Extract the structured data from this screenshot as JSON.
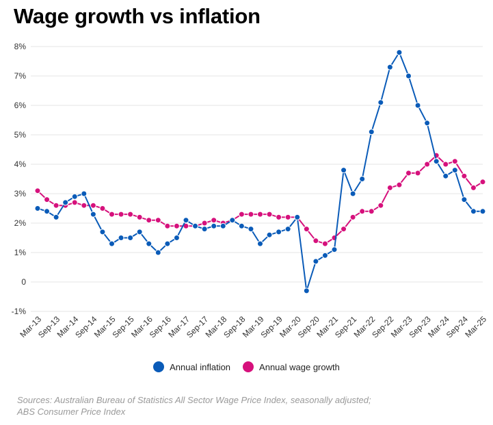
{
  "chart_data": {
    "type": "line",
    "title": "Wage growth vs inflation",
    "xlabel": "",
    "ylabel": "",
    "ylim": [
      -1,
      8
    ],
    "y_ticks": [
      -1,
      0,
      1,
      2,
      3,
      4,
      5,
      6,
      7,
      8
    ],
    "y_tick_labels": [
      "-1%",
      "0",
      "1%",
      "2%",
      "3%",
      "4%",
      "5%",
      "6%",
      "7%",
      "8%"
    ],
    "grid": true,
    "legend_position": "bottom-center",
    "x_tick_labels": [
      "Mar-13",
      "Sep-13",
      "Mar-14",
      "Sep-14",
      "Mar-15",
      "Sep-15",
      "Mar-16",
      "Sep-16",
      "Mar-17",
      "Sep-17",
      "Mar-18",
      "Sep-18",
      "Mar-19",
      "Sep-19",
      "Mar-20",
      "Sep-20",
      "Mar-21",
      "Sep-21",
      "Mar-22",
      "Sep-22",
      "Mar-23",
      "Sep-23",
      "Mar-24",
      "Sep-24",
      "Mar-25"
    ],
    "categories": [
      "Mar-13",
      "Jun-13",
      "Sep-13",
      "Dec-13",
      "Mar-14",
      "Jun-14",
      "Sep-14",
      "Dec-14",
      "Mar-15",
      "Jun-15",
      "Sep-15",
      "Dec-15",
      "Mar-16",
      "Jun-16",
      "Sep-16",
      "Dec-16",
      "Mar-17",
      "Jun-17",
      "Sep-17",
      "Dec-17",
      "Mar-18",
      "Jun-18",
      "Sep-18",
      "Dec-18",
      "Mar-19",
      "Jun-19",
      "Sep-19",
      "Dec-19",
      "Mar-20",
      "Jun-20",
      "Sep-20",
      "Dec-20",
      "Mar-21",
      "Jun-21",
      "Sep-21",
      "Dec-21",
      "Mar-22",
      "Jun-22",
      "Sep-22",
      "Dec-22",
      "Mar-23",
      "Jun-23",
      "Sep-23",
      "Dec-23",
      "Mar-24",
      "Jun-24",
      "Sep-24",
      "Dec-24",
      "Mar-25"
    ],
    "series": [
      {
        "name": "Annual inflation",
        "color": "#0a5bb8",
        "values": [
          2.5,
          2.4,
          2.2,
          2.7,
          2.9,
          3.0,
          2.3,
          1.7,
          1.3,
          1.5,
          1.5,
          1.7,
          1.3,
          1.0,
          1.3,
          1.5,
          2.1,
          1.9,
          1.8,
          1.9,
          1.9,
          2.1,
          1.9,
          1.8,
          1.3,
          1.6,
          1.7,
          1.8,
          2.2,
          -0.3,
          0.7,
          0.9,
          1.1,
          3.8,
          3.0,
          3.5,
          5.1,
          6.1,
          7.3,
          7.8,
          7.0,
          6.0,
          5.4,
          4.1,
          3.6,
          3.8,
          2.8,
          2.4,
          2.4
        ]
      },
      {
        "name": "Annual wage growth",
        "color": "#d6117c",
        "values": [
          3.1,
          2.8,
          2.6,
          2.6,
          2.7,
          2.6,
          2.6,
          2.5,
          2.3,
          2.3,
          2.3,
          2.2,
          2.1,
          2.1,
          1.9,
          1.9,
          1.9,
          1.9,
          2.0,
          2.1,
          2.0,
          2.1,
          2.3,
          2.3,
          2.3,
          2.3,
          2.2,
          2.2,
          2.2,
          1.8,
          1.4,
          1.3,
          1.5,
          1.8,
          2.2,
          2.4,
          2.4,
          2.6,
          3.2,
          3.3,
          3.7,
          3.7,
          4.0,
          4.3,
          4.0,
          4.1,
          3.6,
          3.2,
          3.4
        ]
      }
    ]
  },
  "legend": {
    "inflation_label": "Annual inflation",
    "wage_label": "Annual wage growth"
  },
  "source": {
    "line1": "Sources: Australian Bureau of Statistics All Sector Wage Price Index, seasonally adjusted;",
    "line2": "ABS Consumer Price Index"
  }
}
